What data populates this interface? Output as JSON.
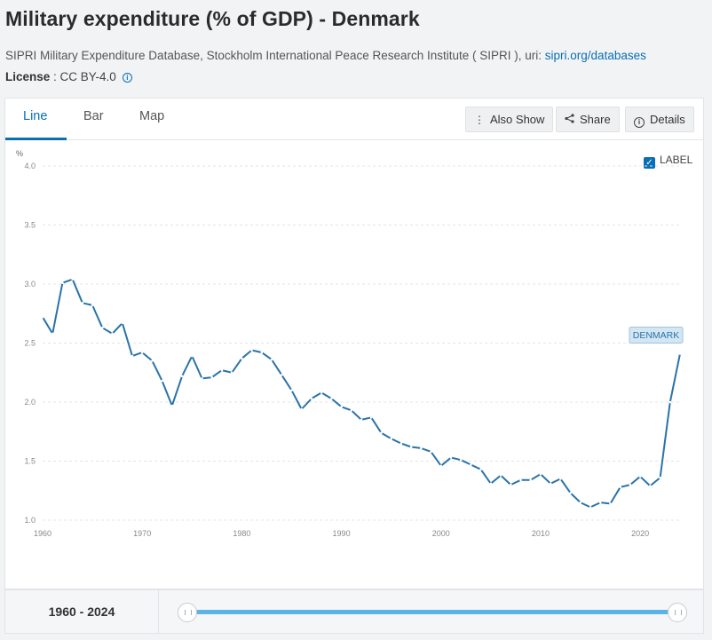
{
  "header": {
    "title": "Military expenditure (% of GDP) - Denmark",
    "source_prefix": "SIPRI Military Expenditure Database, Stockholm International Peace Research Institute ( SIPRI ), uri: ",
    "source_link": "sipri.org/databases",
    "license_label": "License",
    "license_value": " : CC BY-4.0"
  },
  "tabs": [
    {
      "label": "Line"
    },
    {
      "label": "Bar"
    },
    {
      "label": "Map"
    }
  ],
  "toolbar": {
    "also_show": "Also Show",
    "share": "Share",
    "details": "Details"
  },
  "label_toggle": "LABEL",
  "range": {
    "label": "1960 - 2024"
  },
  "colors": {
    "series": "#2a73a8",
    "accent": "#0a6eb5",
    "callout_bg": "#d4e6f3"
  },
  "chart_data": {
    "type": "line",
    "title": "",
    "xlabel": "",
    "ylabel": "%",
    "ylim": [
      1.0,
      4.0
    ],
    "yticks": [
      "1.0",
      "1.5",
      "2.0",
      "2.5",
      "3.0",
      "3.5",
      "4.0"
    ],
    "xlim": [
      1960,
      2024
    ],
    "xticks": [
      "1960",
      "1970",
      "1980",
      "1990",
      "2000",
      "2010",
      "2020"
    ],
    "grid": "horizontal dashed",
    "legend": "none",
    "series": [
      {
        "name": "DENMARK",
        "x": [
          1960,
          1961,
          1962,
          1963,
          1964,
          1965,
          1966,
          1967,
          1968,
          1969,
          1970,
          1971,
          1972,
          1973,
          1974,
          1975,
          1976,
          1977,
          1978,
          1979,
          1980,
          1981,
          1982,
          1983,
          1984,
          1985,
          1986,
          1987,
          1988,
          1989,
          1990,
          1991,
          1992,
          1993,
          1994,
          1995,
          1996,
          1997,
          1998,
          1999,
          2000,
          2001,
          2002,
          2003,
          2004,
          2005,
          2006,
          2007,
          2008,
          2009,
          2010,
          2011,
          2012,
          2013,
          2014,
          2015,
          2016,
          2017,
          2018,
          2019,
          2020,
          2021,
          2022,
          2023,
          2024
        ],
        "values": [
          2.72,
          2.58,
          3.01,
          3.04,
          2.84,
          2.82,
          2.63,
          2.58,
          2.67,
          2.39,
          2.42,
          2.35,
          2.18,
          1.97,
          2.22,
          2.39,
          2.2,
          2.21,
          2.27,
          2.25,
          2.37,
          2.44,
          2.42,
          2.36,
          2.23,
          2.1,
          1.94,
          2.03,
          2.08,
          2.03,
          1.96,
          1.93,
          1.85,
          1.87,
          1.74,
          1.69,
          1.65,
          1.62,
          1.61,
          1.58,
          1.46,
          1.53,
          1.51,
          1.47,
          1.43,
          1.31,
          1.38,
          1.3,
          1.34,
          1.34,
          1.39,
          1.31,
          1.35,
          1.23,
          1.15,
          1.11,
          1.15,
          1.14,
          1.28,
          1.3,
          1.37,
          1.29,
          1.36,
          2.0,
          2.41
        ]
      }
    ]
  }
}
